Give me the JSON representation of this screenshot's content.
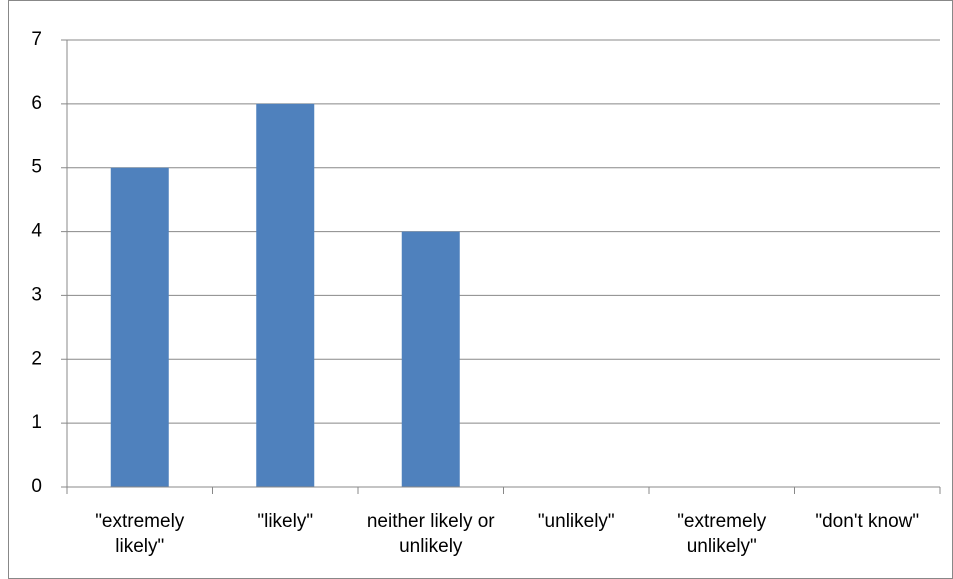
{
  "chart_data": {
    "type": "bar",
    "categories": [
      "\"extremely likely\"",
      "\"likely\"",
      "neither likely or unlikely",
      "\"unlikely\"",
      "\"extremely unlikely\"",
      "\"don't know\""
    ],
    "values": [
      5,
      6,
      4,
      0,
      0,
      0
    ],
    "color": "#4f81bd",
    "ylim": [
      0,
      7
    ],
    "yticks": [
      0,
      1,
      2,
      3,
      4,
      5,
      6,
      7
    ],
    "grid": true
  }
}
